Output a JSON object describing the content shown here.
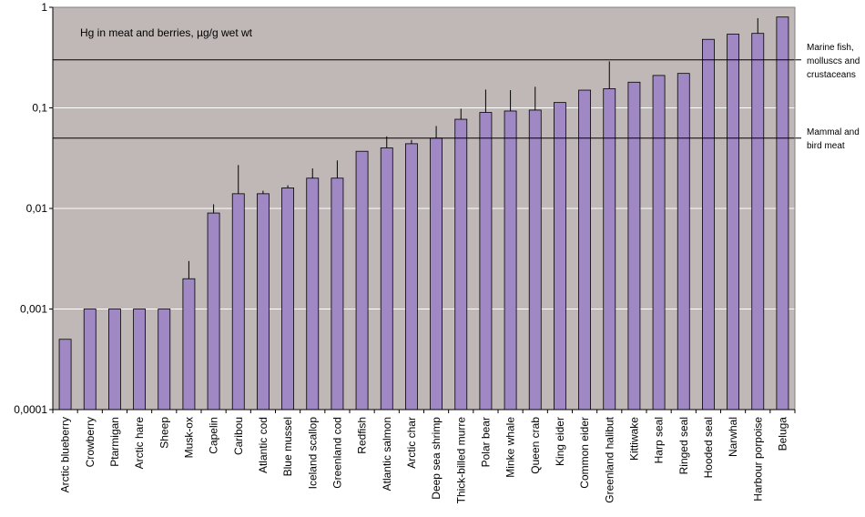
{
  "chart_data": {
    "type": "bar",
    "y_scale": "log",
    "ylim": [
      0.0001,
      1
    ],
    "y_ticks": [
      "0,0001",
      "0,001",
      "0,01",
      "0,1",
      "1"
    ],
    "grid": true,
    "title": "Hg in meat and berries, µg/g wet wt",
    "xlabel": "",
    "ylabel": "",
    "categories": [
      "Arctic blueberry",
      "Crowberry",
      "Ptarmigan",
      "Arctic hare",
      "Sheep",
      "Musk-ox",
      "Capelin",
      "Caribou",
      "Atlantic cod",
      "Blue mussel",
      "Iceland scallop",
      "Greenland cod",
      "Redfish",
      "Atlantic salmon",
      "Arctic char",
      "Deep sea shrimp",
      "Thick-billed murre",
      "Polar bear",
      "Minke whale",
      "Queen crab",
      "King eider",
      "Common eider",
      "Greenland halibut",
      "Kittiwake",
      "Harp seal",
      "Ringed seal",
      "Hooded seal",
      "Narwhal",
      "Harbour porpoise",
      "Beluga"
    ],
    "values": [
      0.0005,
      0.001,
      0.001,
      0.001,
      0.001,
      0.002,
      0.009,
      0.014,
      0.014,
      0.016,
      0.02,
      0.02,
      0.037,
      0.04,
      0.044,
      0.05,
      0.077,
      0.09,
      0.093,
      0.095,
      0.113,
      0.15,
      0.155,
      0.18,
      0.21,
      0.22,
      0.48,
      0.54,
      0.55,
      0.8
    ],
    "error_upper": [
      null,
      null,
      null,
      null,
      null,
      0.003,
      0.011,
      0.027,
      0.015,
      0.017,
      0.025,
      0.03,
      null,
      0.052,
      0.048,
      0.066,
      0.098,
      0.152,
      0.15,
      0.162,
      null,
      null,
      0.29,
      null,
      null,
      null,
      null,
      null,
      0.78,
      null
    ],
    "reference_lines": [
      {
        "value": 0.3,
        "label_lines": [
          "Marine fish,",
          "molluscs and",
          "crustaceans"
        ]
      },
      {
        "value": 0.05,
        "label_lines": [
          "Mammal and",
          "bird meat"
        ]
      }
    ],
    "colors": {
      "plot_background": "#c0b7b7",
      "bar_fill": "#9f88c3",
      "bar_stroke": "#000000",
      "gridline": "#ffffff",
      "axis": "#000000"
    }
  }
}
